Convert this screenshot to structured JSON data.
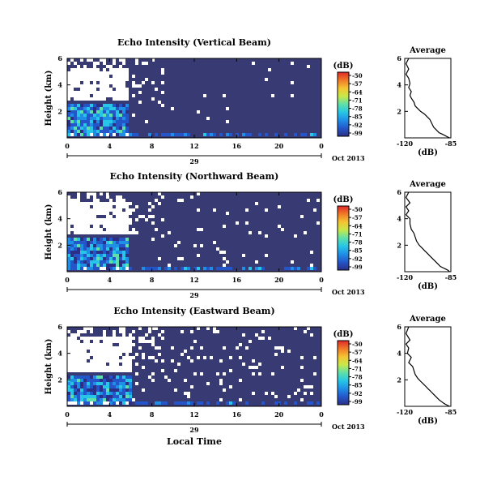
{
  "figure": {
    "bottom_xlabel": "Local Time",
    "date_label": "Oct 2013",
    "day_label": "29",
    "colorbar_unit": "(dB)",
    "colorbar_ticks": [
      "-50",
      "-57",
      "-64",
      "-71",
      "-78",
      "-85",
      "-92",
      "-99"
    ],
    "colorbar_colors": [
      "#2b2f86",
      "#2456c9",
      "#1f8fe6",
      "#27c6e6",
      "#5fe0a8",
      "#c8e84a",
      "#f5c432",
      "#f07a28",
      "#e0282a"
    ],
    "background_color": "#373a73",
    "profile_title": "Average",
    "profile_xlabel": "(dB)"
  },
  "chart_data": [
    {
      "type": "heatmap",
      "title": "Echo Intensity (Vertical Beam)",
      "ylabel": "Height (km)",
      "x_ticks": [
        "0",
        "4",
        "8",
        "12",
        "16",
        "20",
        "0"
      ],
      "y_ticks": [
        "6",
        "4",
        "2"
      ],
      "xlim_hours": [
        0,
        24
      ],
      "ylim_km": [
        0,
        6
      ],
      "clim_db": [
        -99,
        -50
      ],
      "colormap": "jet",
      "description_points": [
        {
          "hour": 0,
          "low_layer_top_km": 2.6,
          "blank_from_km": 2.8,
          "blank_to_km": 6.0
        },
        {
          "hour": 5.5,
          "low_layer_top_km": 2.6,
          "blank_from_km": 2.8,
          "blank_to_km": 6.0
        },
        {
          "hour": 6,
          "low_layer_top_km": 0.4
        },
        {
          "hour": 24,
          "low_layer_top_km": 0.4
        }
      ]
    },
    {
      "type": "line",
      "title": "Average",
      "xlabel": "(dB)",
      "x_ticks": [
        "-120",
        "-85"
      ],
      "y_ticks": [
        "6",
        "4",
        "2"
      ],
      "xlim": [
        -120,
        -85
      ],
      "ylim": [
        0,
        6
      ],
      "series": [
        {
          "x": [
            -117,
            -119,
            -117,
            -119,
            -117,
            -116,
            -117,
            -115,
            -116,
            -115,
            -113,
            -112,
            -110,
            -108,
            -105,
            -103,
            -101,
            -100,
            -99,
            -98,
            -96,
            -94,
            -92,
            -90,
            -88,
            -86
          ],
          "y": [
            6.0,
            5.6,
            5.2,
            4.8,
            4.5,
            4.1,
            3.8,
            3.5,
            3.2,
            3.0,
            2.7,
            2.4,
            2.2,
            2.0,
            1.8,
            1.6,
            1.4,
            1.2,
            1.0,
            0.8,
            0.6,
            0.4,
            0.3,
            0.2,
            0.1,
            0.0
          ]
        }
      ]
    },
    {
      "type": "heatmap",
      "title": "Echo Intensity (Northward Beam)",
      "ylabel": "Height (km)",
      "x_ticks": [
        "0",
        "4",
        "8",
        "12",
        "16",
        "20",
        "0"
      ],
      "y_ticks": [
        "6",
        "4",
        "2"
      ],
      "xlim_hours": [
        0,
        24
      ],
      "ylim_km": [
        0,
        6
      ],
      "clim_db": [
        -99,
        -50
      ],
      "colormap": "jet"
    },
    {
      "type": "line",
      "title": "Average",
      "xlabel": "(dB)",
      "x_ticks": [
        "-120",
        "-85"
      ],
      "y_ticks": [
        "6",
        "4",
        "2"
      ],
      "xlim": [
        -120,
        -85
      ],
      "ylim": [
        0,
        6
      ],
      "series": [
        {
          "x": [
            -117,
            -119,
            -116,
            -119,
            -117,
            -119,
            -116,
            -116,
            -115,
            -113,
            -112,
            -111,
            -109,
            -107,
            -105,
            -103,
            -101,
            -99,
            -97,
            -95,
            -93,
            -91,
            -89,
            -87,
            -86
          ],
          "y": [
            6.0,
            5.6,
            5.2,
            4.9,
            4.6,
            4.3,
            4.0,
            3.6,
            3.2,
            2.9,
            2.6,
            2.3,
            2.0,
            1.8,
            1.6,
            1.4,
            1.2,
            1.0,
            0.8,
            0.6,
            0.4,
            0.3,
            0.2,
            0.1,
            0.0
          ]
        }
      ]
    },
    {
      "type": "heatmap",
      "title": "Echo Intensity (Eastward Beam)",
      "ylabel": "Height (km)",
      "x_ticks": [
        "0",
        "4",
        "8",
        "12",
        "16",
        "20",
        "0"
      ],
      "y_ticks": [
        "6",
        "4",
        "2"
      ],
      "xlim_hours": [
        0,
        24
      ],
      "ylim_km": [
        0,
        6
      ],
      "clim_db": [
        -99,
        -50
      ],
      "colormap": "jet"
    },
    {
      "type": "line",
      "title": "Average",
      "xlabel": "(dB)",
      "x_ticks": [
        "-120",
        "-85"
      ],
      "y_ticks": [
        "6",
        "4",
        "2"
      ],
      "xlim": [
        -120,
        -85
      ],
      "ylim": [
        0,
        6
      ],
      "series": [
        {
          "x": [
            -117,
            -119,
            -116,
            -119,
            -117,
            -118,
            -115,
            -117,
            -114,
            -113,
            -112,
            -110,
            -108,
            -106,
            -104,
            -102,
            -100,
            -98,
            -96,
            -94,
            -92,
            -90,
            -88,
            -86
          ],
          "y": [
            6.0,
            5.5,
            5.0,
            4.7,
            4.4,
            4.0,
            3.7,
            3.3,
            3.0,
            2.7,
            2.4,
            2.1,
            1.9,
            1.7,
            1.5,
            1.3,
            1.1,
            0.9,
            0.7,
            0.5,
            0.35,
            0.2,
            0.1,
            0.0
          ]
        }
      ]
    }
  ]
}
